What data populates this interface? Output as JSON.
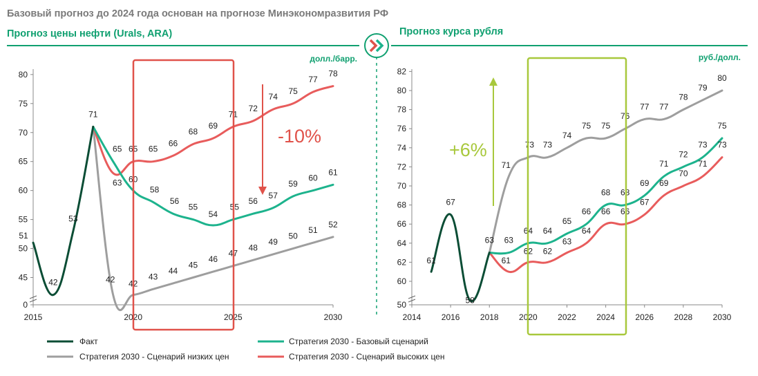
{
  "header": {
    "title": "Базовый прогноз до 2024 года основан на прогнозе Минэкономразвития РФ",
    "left_subtitle": "Прогноз цены нефти (Urals, ARA)",
    "right_subtitle": "Прогноз курса рубля",
    "divider_icon": "double-chevron-right-icon"
  },
  "colors": {
    "fact": "#0b4d35",
    "base": "#1db38d",
    "low": "#9e9e9e",
    "high": "#e85c5c",
    "left_box": "#e0524a",
    "right_box": "#a8c83c",
    "header_green": "#10a070",
    "title_gray": "#7a7a7a"
  },
  "legend": {
    "fact": "Факт",
    "base": "Стратегия 2030 - Базовый сценарий",
    "low": "Стратегия 2030 - Сценарий низких цен",
    "high": "Стратегия 2030 - Сценарий высоких цен"
  },
  "chart_data": [
    {
      "type": "line",
      "title": "Прогноз цены нефти (Urals, ARA)",
      "unit": "долл./барр.",
      "xlim": [
        2015,
        2030
      ],
      "x_ticks": [
        "2015",
        "2020",
        "2025",
        "2030"
      ],
      "y_ticks": [
        "0",
        "45",
        "50",
        "55",
        "60",
        "65",
        "70",
        "75",
        "80"
      ],
      "ylim_display": [
        40,
        80
      ],
      "axis_break": true,
      "highlight_box": {
        "from": 2020,
        "to": 2025
      },
      "annotation": {
        "text": "-10%",
        "arrow": "down"
      },
      "series": [
        {
          "key": "fact",
          "points": [
            {
              "x": 2015,
              "y": 51
            },
            {
              "x": 2016,
              "y": 42
            },
            {
              "x": 2017,
              "y": 53
            },
            {
              "x": 2018,
              "y": 71
            }
          ]
        },
        {
          "key": "base",
          "points": [
            {
              "x": 2018,
              "y": 71
            },
            {
              "x": 2019,
              "y": 65
            },
            {
              "x": 2020,
              "y": 60
            },
            {
              "x": 2021,
              "y": 58
            },
            {
              "x": 2022,
              "y": 56
            },
            {
              "x": 2023,
              "y": 55
            },
            {
              "x": 2024,
              "y": 54
            },
            {
              "x": 2025,
              "y": 55
            },
            {
              "x": 2026,
              "y": 56
            },
            {
              "x": 2027,
              "y": 57
            },
            {
              "x": 2028,
              "y": 59
            },
            {
              "x": 2029,
              "y": 60
            },
            {
              "x": 2030,
              "y": 61
            }
          ]
        },
        {
          "key": "low",
          "points": [
            {
              "x": 2018,
              "y": 71
            },
            {
              "x": 2019,
              "y": 42
            },
            {
              "x": 2020,
              "y": 42
            },
            {
              "x": 2021,
              "y": 43
            },
            {
              "x": 2022,
              "y": 44
            },
            {
              "x": 2023,
              "y": 45
            },
            {
              "x": 2024,
              "y": 46
            },
            {
              "x": 2025,
              "y": 47
            },
            {
              "x": 2026,
              "y": 48
            },
            {
              "x": 2027,
              "y": 49
            },
            {
              "x": 2028,
              "y": 50
            },
            {
              "x": 2029,
              "y": 51
            },
            {
              "x": 2030,
              "y": 52
            }
          ]
        },
        {
          "key": "high",
          "points": [
            {
              "x": 2018,
              "y": 71
            },
            {
              "x": 2019,
              "y": 63
            },
            {
              "x": 2020,
              "y": 65
            },
            {
              "x": 2021,
              "y": 65
            },
            {
              "x": 2022,
              "y": 66
            },
            {
              "x": 2023,
              "y": 68
            },
            {
              "x": 2024,
              "y": 69
            },
            {
              "x": 2025,
              "y": 71
            },
            {
              "x": 2026,
              "y": 72
            },
            {
              "x": 2027,
              "y": 74
            },
            {
              "x": 2028,
              "y": 75
            },
            {
              "x": 2029,
              "y": 77
            },
            {
              "x": 2030,
              "y": 78
            }
          ]
        }
      ]
    },
    {
      "type": "line",
      "title": "Прогноз курса рубля",
      "unit": "руб./долл.",
      "xlim": [
        2014,
        2030
      ],
      "x_ticks": [
        "2014",
        "2016",
        "2018",
        "2020",
        "2022",
        "2024",
        "2026",
        "2028",
        "2030"
      ],
      "y_ticks": [
        "50",
        "60",
        "62",
        "64",
        "66",
        "68",
        "70",
        "72",
        "74",
        "76",
        "78",
        "80",
        "82"
      ],
      "ylim_display": [
        59,
        82
      ],
      "axis_break": true,
      "highlight_box": {
        "from": 2020,
        "to": 2025
      },
      "annotation": {
        "text": "+6%",
        "arrow": "up"
      },
      "series": [
        {
          "key": "fact",
          "points": [
            {
              "x": 2015,
              "y": 61
            },
            {
              "x": 2016,
              "y": 67
            },
            {
              "x": 2017,
              "y": 58
            },
            {
              "x": 2018,
              "y": 63
            }
          ]
        },
        {
          "key": "base",
          "points": [
            {
              "x": 2018,
              "y": 63
            },
            {
              "x": 2019,
              "y": 63
            },
            {
              "x": 2020,
              "y": 64
            },
            {
              "x": 2021,
              "y": 64
            },
            {
              "x": 2022,
              "y": 65
            },
            {
              "x": 2023,
              "y": 66
            },
            {
              "x": 2024,
              "y": 68
            },
            {
              "x": 2025,
              "y": 68
            },
            {
              "x": 2026,
              "y": 69
            },
            {
              "x": 2027,
              "y": 71
            },
            {
              "x": 2028,
              "y": 72
            },
            {
              "x": 2029,
              "y": 73
            },
            {
              "x": 2030,
              "y": 75
            }
          ]
        },
        {
          "key": "low",
          "points": [
            {
              "x": 2018,
              "y": 63
            },
            {
              "x": 2019,
              "y": 71
            },
            {
              "x": 2020,
              "y": 73
            },
            {
              "x": 2021,
              "y": 73
            },
            {
              "x": 2022,
              "y": 74
            },
            {
              "x": 2023,
              "y": 75
            },
            {
              "x": 2024,
              "y": 75
            },
            {
              "x": 2025,
              "y": 76
            },
            {
              "x": 2026,
              "y": 77
            },
            {
              "x": 2027,
              "y": 77
            },
            {
              "x": 2028,
              "y": 78
            },
            {
              "x": 2029,
              "y": 79
            },
            {
              "x": 2030,
              "y": 80
            }
          ]
        },
        {
          "key": "high",
          "points": [
            {
              "x": 2018,
              "y": 63
            },
            {
              "x": 2019,
              "y": 61
            },
            {
              "x": 2020,
              "y": 62
            },
            {
              "x": 2021,
              "y": 62
            },
            {
              "x": 2022,
              "y": 63
            },
            {
              "x": 2023,
              "y": 64
            },
            {
              "x": 2024,
              "y": 66
            },
            {
              "x": 2025,
              "y": 66
            },
            {
              "x": 2026,
              "y": 67
            },
            {
              "x": 2027,
              "y": 69
            },
            {
              "x": 2028,
              "y": 70
            },
            {
              "x": 2029,
              "y": 71
            },
            {
              "x": 2030,
              "y": 73
            }
          ]
        }
      ]
    }
  ]
}
